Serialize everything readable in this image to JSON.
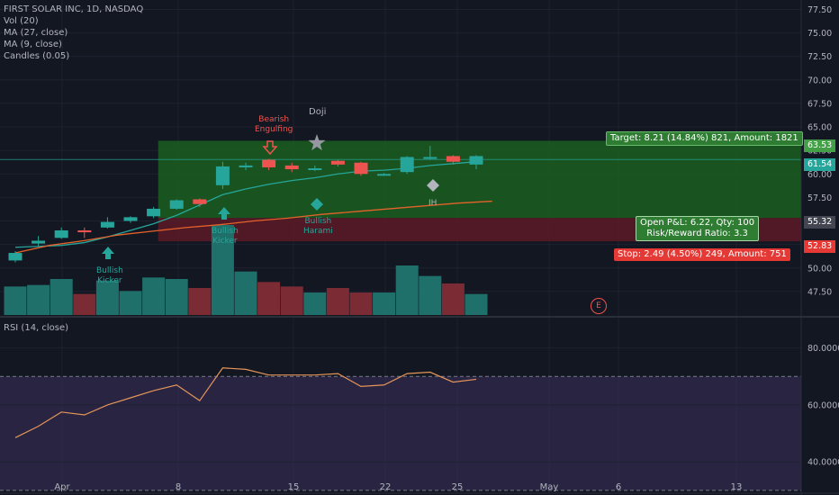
{
  "legend": [
    "FIRST SOLAR INC, 1D, NASDAQ",
    "Vol (20)",
    "MA (27, close)",
    "MA (9, close)",
    "Candles (0.05)"
  ],
  "rsi_legend": "RSI (14, close)",
  "colors": {
    "bg": "#131722",
    "up": "#26a69a",
    "down": "#ef5350",
    "grid": "#1e2230",
    "axis": "#b2b5be",
    "ma_fast": "#26a69a",
    "ma_slow": "#e4622b",
    "rsi": "#e49559",
    "rsi_band": "#3b2f5c",
    "target_zone": "#1b5e20",
    "stop_zone": "#5d1a26"
  },
  "annotations": {
    "bearish_engulfing": "Bearish\nEngulfing",
    "doji": "Doji",
    "bullish_kicker": "Bullish\nKicker",
    "bullish_kicker_2": "Bullish\nKicker",
    "bullish_harami": "Bullish\nHarami",
    "ih": "IH",
    "earnings": "E"
  },
  "boxes": {
    "target": "Target: 8.21 (14.84%) 821, Amount: 1821",
    "open_pnl": "Open P&L: 6.22, Qty: 100",
    "risk_reward": "Risk/Reward Ratio: 3.3",
    "stop": "Stop: 2.49 (4.50%) 249, Amount: 751"
  },
  "price_badges": {
    "target": "63.53",
    "last": "61.54",
    "entry": "55.32",
    "stop": "52.83"
  },
  "chart_data": [
    {
      "type": "candlestick",
      "title": "FIRST SOLAR INC, 1D, NASDAQ",
      "x_ticks": [
        "Apr",
        "8",
        "15",
        "22",
        "25",
        "May",
        "6",
        "13"
      ],
      "y_ticks": [
        47.5,
        50.0,
        52.5,
        55.0,
        57.5,
        60.0,
        62.5,
        65.0,
        67.5,
        70.0,
        72.5,
        75.0,
        77.5
      ],
      "ylim": [
        45.0,
        78.5
      ],
      "candles": [
        {
          "o": 50.8,
          "h": 51.8,
          "l": 50.6,
          "c": 51.6
        },
        {
          "o": 52.6,
          "h": 53.4,
          "l": 52.3,
          "c": 52.9
        },
        {
          "o": 53.2,
          "h": 54.3,
          "l": 53.1,
          "c": 54.0
        },
        {
          "o": 54.0,
          "h": 54.3,
          "l": 53.2,
          "c": 53.8
        },
        {
          "o": 54.3,
          "h": 55.4,
          "l": 54.2,
          "c": 54.9
        },
        {
          "o": 55.0,
          "h": 55.5,
          "l": 54.8,
          "c": 55.4
        },
        {
          "o": 55.5,
          "h": 56.5,
          "l": 55.3,
          "c": 56.3
        },
        {
          "o": 56.3,
          "h": 57.3,
          "l": 56.2,
          "c": 57.2
        },
        {
          "o": 57.3,
          "h": 57.4,
          "l": 56.5,
          "c": 56.8
        },
        {
          "o": 58.8,
          "h": 61.3,
          "l": 58.4,
          "c": 60.8
        },
        {
          "o": 60.7,
          "h": 61.2,
          "l": 60.4,
          "c": 60.9
        },
        {
          "o": 61.5,
          "h": 61.6,
          "l": 60.4,
          "c": 60.7
        },
        {
          "o": 60.9,
          "h": 61.2,
          "l": 60.2,
          "c": 60.5
        },
        {
          "o": 60.5,
          "h": 60.9,
          "l": 60.3,
          "c": 60.6
        },
        {
          "o": 61.4,
          "h": 61.5,
          "l": 60.8,
          "c": 61.0
        },
        {
          "o": 61.2,
          "h": 61.3,
          "l": 59.8,
          "c": 60.0
        },
        {
          "o": 60.0,
          "h": 60.1,
          "l": 59.8,
          "c": 60.0
        },
        {
          "o": 60.2,
          "h": 61.9,
          "l": 60.0,
          "c": 61.8
        },
        {
          "o": 61.8,
          "h": 63.0,
          "l": 61.5,
          "c": 61.8
        },
        {
          "o": 61.9,
          "h": 62.0,
          "l": 61.0,
          "c": 61.3
        },
        {
          "o": 61.0,
          "h": 62.0,
          "l": 60.5,
          "c": 61.9
        }
      ],
      "ma_fast": [
        52.2,
        52.3,
        52.4,
        52.7,
        53.3,
        54.0,
        54.7,
        55.6,
        56.7,
        57.8,
        58.4,
        58.9,
        59.3,
        59.6,
        60.0,
        60.3,
        60.4,
        60.6,
        60.9,
        61.1,
        61.3
      ],
      "ma_slow": [
        51.6,
        52.4,
        52.9,
        53.5,
        53.9,
        54.3,
        54.6,
        55.0,
        55.3,
        55.7,
        56.0,
        56.3,
        56.6,
        56.9,
        57.1
      ],
      "position": {
        "target": 63.53,
        "entry": 55.32,
        "stop": 52.83,
        "last": 61.54
      }
    },
    {
      "type": "bar",
      "title": "Vol (20)",
      "values": [
        1.9,
        2.0,
        2.4,
        1.4,
        2.3,
        1.6,
        2.5,
        2.4,
        1.8,
        6.0,
        2.9,
        2.2,
        1.9,
        1.5,
        1.8,
        1.5,
        1.5,
        3.3,
        2.6,
        2.1,
        1.4
      ],
      "up": [
        true,
        true,
        true,
        false,
        true,
        true,
        true,
        true,
        false,
        true,
        true,
        false,
        false,
        true,
        false,
        false,
        true,
        true,
        true,
        false,
        true
      ]
    },
    {
      "type": "line",
      "title": "RSI (14, close)",
      "y_ticks": [
        40.0,
        60.0,
        80.0
      ],
      "ylim": [
        29.0,
        90.0
      ],
      "bands": [
        30,
        70
      ],
      "values": [
        48.5,
        52.5,
        57.5,
        56.5,
        60.0,
        62.5,
        65.0,
        67.0,
        61.5,
        73.0,
        72.5,
        70.5,
        70.5,
        70.5,
        71.0,
        66.5,
        67.0,
        71.0,
        71.5,
        68.0,
        69.0
      ]
    }
  ]
}
